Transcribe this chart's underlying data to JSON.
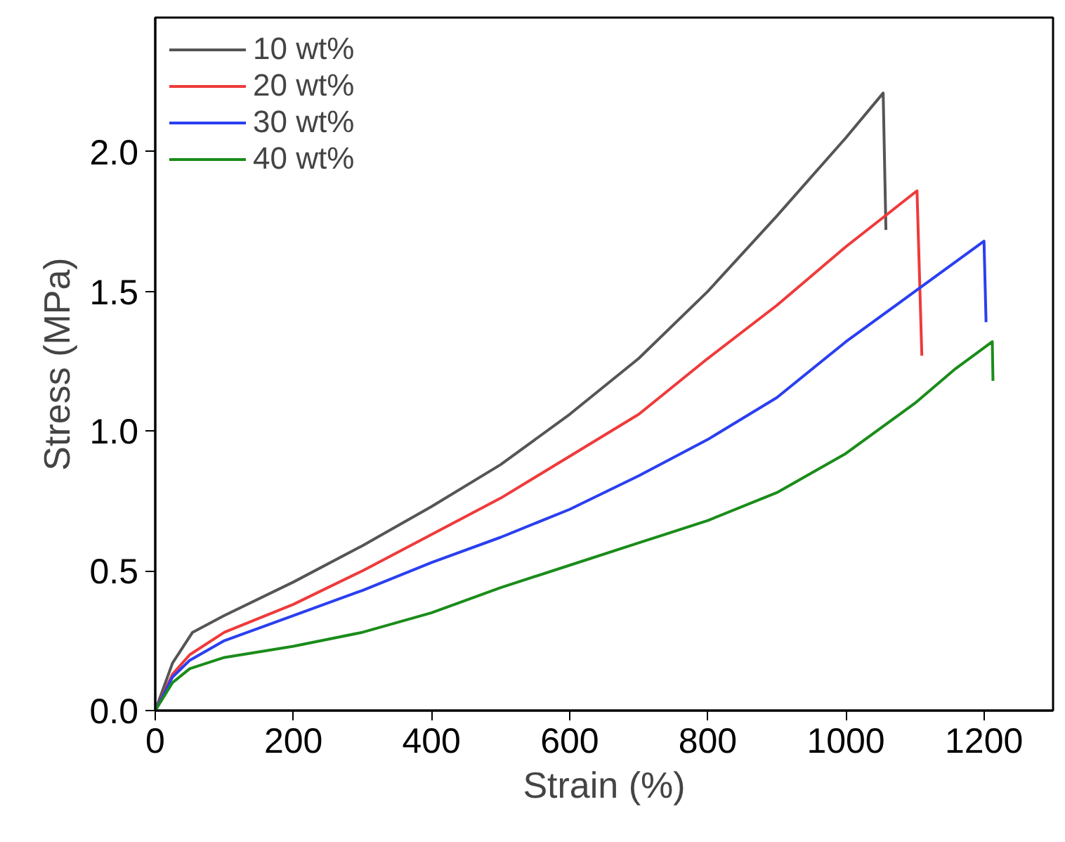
{
  "chart_data": {
    "type": "line",
    "xlabel": "Strain (%)",
    "ylabel": "Stress (MPa)",
    "xlim": [
      0,
      1300
    ],
    "ylim": [
      0,
      2.48
    ],
    "xticks": [
      0,
      200,
      400,
      600,
      800,
      1000,
      1200
    ],
    "yticks": [
      {
        "value": 0,
        "label": "0.0"
      },
      {
        "value": 0.5,
        "label": "0.5"
      },
      {
        "value": 1.0,
        "label": "1.0"
      },
      {
        "value": 1.5,
        "label": "1.5"
      },
      {
        "value": 2.0,
        "label": "2.0"
      }
    ],
    "grid": false,
    "legend": "top left",
    "marker": "none",
    "line_style": "solid",
    "series": [
      {
        "name": "10 wt%",
        "color": "#555555",
        "x": [
          0,
          25,
          54,
          100,
          200,
          300,
          400,
          500,
          600,
          700,
          800,
          900,
          1000,
          1054,
          1058
        ],
        "values": [
          0,
          0.17,
          0.28,
          0.34,
          0.46,
          0.59,
          0.73,
          0.88,
          1.06,
          1.26,
          1.5,
          1.77,
          2.05,
          2.21,
          1.72
        ]
      },
      {
        "name": "20 wt%",
        "color": "#ef3a3a",
        "x": [
          0,
          25,
          50,
          100,
          200,
          300,
          400,
          500,
          600,
          700,
          800,
          900,
          1000,
          1103,
          1110
        ],
        "values": [
          0,
          0.13,
          0.2,
          0.28,
          0.38,
          0.5,
          0.63,
          0.76,
          0.91,
          1.06,
          1.26,
          1.45,
          1.66,
          1.86,
          1.27
        ]
      },
      {
        "name": "30 wt%",
        "color": "#2a3ff0",
        "x": [
          0,
          25,
          50,
          100,
          200,
          300,
          400,
          500,
          600,
          700,
          800,
          900,
          1000,
          1100,
          1200,
          1203
        ],
        "values": [
          0,
          0.12,
          0.18,
          0.25,
          0.34,
          0.43,
          0.53,
          0.62,
          0.72,
          0.84,
          0.97,
          1.12,
          1.32,
          1.5,
          1.68,
          1.39
        ]
      },
      {
        "name": "40 wt%",
        "color": "#1a8c1a",
        "x": [
          0,
          25,
          50,
          100,
          200,
          300,
          400,
          500,
          600,
          700,
          800,
          900,
          1000,
          1100,
          1157,
          1212,
          1213
        ],
        "values": [
          0,
          0.1,
          0.15,
          0.19,
          0.23,
          0.28,
          0.35,
          0.44,
          0.52,
          0.6,
          0.68,
          0.78,
          0.92,
          1.1,
          1.22,
          1.32,
          1.18
        ]
      }
    ]
  }
}
